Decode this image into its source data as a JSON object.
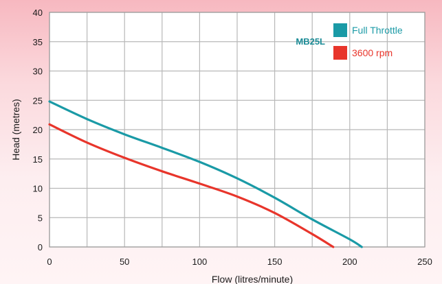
{
  "chart_data": {
    "type": "line",
    "xlabel": "Flow (litres/minute)",
    "ylabel": "Head (metres)",
    "xlim": [
      0,
      250
    ],
    "ylim": [
      0,
      40
    ],
    "x_ticks": [
      "0",
      "50",
      "100",
      "150",
      "200",
      "250"
    ],
    "y_ticks": [
      "0",
      "5",
      "10",
      "15",
      "20",
      "25",
      "30",
      "35",
      "40"
    ],
    "grid": true,
    "legend_title": "MB25L",
    "legend_position": "top-right",
    "series": [
      {
        "name": "Full Throttle",
        "color": "#1a9aa6",
        "points": [
          [
            0,
            24.8
          ],
          [
            25,
            21.8
          ],
          [
            50,
            19.2
          ],
          [
            75,
            16.9
          ],
          [
            100,
            14.5
          ],
          [
            125,
            11.7
          ],
          [
            150,
            8.4
          ],
          [
            175,
            4.7
          ],
          [
            200,
            1.3
          ],
          [
            208,
            0
          ]
        ]
      },
      {
        "name": "3600 rpm",
        "color": "#e8352b",
        "points": [
          [
            0,
            20.9
          ],
          [
            25,
            17.8
          ],
          [
            50,
            15.2
          ],
          [
            75,
            12.9
          ],
          [
            100,
            10.8
          ],
          [
            125,
            8.6
          ],
          [
            150,
            5.8
          ],
          [
            175,
            2.2
          ],
          [
            189,
            0
          ]
        ]
      }
    ]
  }
}
